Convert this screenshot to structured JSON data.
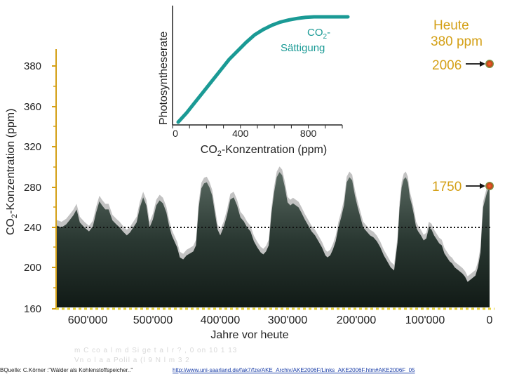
{
  "chart_data": {
    "type": "area",
    "ylabel": "CO2-Konzentration (ppm)",
    "xlabel": "Jahre vor heute",
    "ylim": [
      160,
      395
    ],
    "xlim": [
      650000,
      0
    ],
    "y_ticks": [
      160,
      200,
      240,
      280,
      320,
      360,
      380
    ],
    "x_ticks": [
      "600'000",
      "500'000",
      "400'000",
      "300'000",
      "200'000",
      "100'000",
      "0"
    ],
    "x_tick_values": [
      600000,
      500000,
      400000,
      300000,
      200000,
      100000,
      0
    ],
    "reference_line": 240,
    "series": [
      {
        "x": [
          650000,
          640000,
          633000,
          628000,
          622000,
          617000,
          612000,
          605000,
          598000,
          592000,
          587000,
          582000,
          578000,
          573000,
          568000,
          562000,
          556000,
          551000,
          546000,
          540000,
          535000,
          530000,
          525000,
          520000,
          515000,
          510000,
          505000,
          500000,
          495000,
          490000,
          485000,
          480000,
          476000,
          472000,
          468000,
          464000,
          460000,
          455000,
          450000,
          445000,
          440000,
          436000,
          432000,
          428000,
          424000,
          420000,
          416000,
          412000,
          408000,
          404000,
          400000,
          395000,
          390000,
          385000,
          380000,
          375000,
          370000,
          365000,
          360000,
          355000,
          350000,
          345000,
          340000,
          336000,
          332000,
          328000,
          324000,
          320000,
          316000,
          312000,
          308000,
          304000,
          300000,
          296000,
          292000,
          288000,
          284000,
          280000,
          275000,
          270000,
          265000,
          260000,
          255000,
          250000,
          245000,
          242000,
          238000,
          234000,
          230000,
          226000,
          222000,
          218000,
          214000,
          210000,
          206000,
          202000,
          198000,
          194000,
          190000,
          185000,
          180000,
          175000,
          170000,
          165000,
          160000,
          155000,
          150000,
          145000,
          140000,
          137000,
          134000,
          131000,
          128000,
          125000,
          122000,
          119000,
          116000,
          113000,
          110000,
          106000,
          102000,
          98000,
          94000,
          90000,
          86000,
          82000,
          78000,
          74000,
          70000,
          66000,
          62000,
          58000,
          54000,
          50000,
          46000,
          42000,
          38000,
          34000,
          30000,
          26000,
          22000,
          18000,
          14000,
          12000,
          10000,
          8000,
          6000,
          4000,
          2000,
          0
        ],
        "values": [
          242,
          240,
          243,
          247,
          252,
          258,
          245,
          240,
          236,
          241,
          255,
          266,
          262,
          258,
          258,
          247,
          243,
          240,
          236,
          232,
          235,
          240,
          245,
          260,
          270,
          262,
          240,
          248,
          262,
          267,
          264,
          255,
          242,
          232,
          226,
          220,
          210,
          208,
          212,
          214,
          216,
          222,
          260,
          279,
          284,
          285,
          280,
          272,
          255,
          238,
          232,
          240,
          252,
          268,
          270,
          262,
          250,
          246,
          240,
          236,
          226,
          220,
          215,
          213,
          216,
          222,
          254,
          275,
          290,
          295,
          292,
          280,
          265,
          262,
          264,
          262,
          260,
          255,
          248,
          242,
          236,
          232,
          226,
          220,
          212,
          210,
          212,
          218,
          226,
          240,
          250,
          262,
          285,
          290,
          287,
          272,
          260,
          250,
          240,
          236,
          232,
          230,
          226,
          220,
          212,
          206,
          200,
          197,
          225,
          260,
          280,
          288,
          290,
          285,
          270,
          262,
          252,
          240,
          236,
          232,
          227,
          229,
          240,
          238,
          232,
          228,
          224,
          222,
          214,
          210,
          206,
          204,
          200,
          198,
          196,
          194,
          191,
          186,
          188,
          190,
          192,
          200,
          215,
          240,
          260,
          265,
          270,
          275,
          278,
          280
        ]
      }
    ],
    "annotations": [
      {
        "label": "1750",
        "value": 278
      },
      {
        "label": "2006",
        "value": 380
      },
      {
        "label": "Heute",
        "sub": "380 ppm"
      }
    ],
    "inset": {
      "type": "line",
      "ylabel": "Photosyntheserate",
      "xlabel": "CO2-Konzentration (ppm)",
      "x_ticks": [
        "0",
        "400",
        "800"
      ],
      "x_tick_values": [
        0,
        400,
        800
      ],
      "xlim": [
        0,
        1000
      ],
      "curve_label": "CO2-Sättigung",
      "x": [
        0,
        50,
        100,
        150,
        200,
        250,
        300,
        350,
        400,
        450,
        500,
        550,
        600,
        650,
        700,
        750,
        800,
        850,
        900,
        950,
        1000
      ],
      "values": [
        0,
        0.1,
        0.2,
        0.3,
        0.4,
        0.5,
        0.6,
        0.68,
        0.76,
        0.83,
        0.88,
        0.92,
        0.95,
        0.97,
        0.985,
        0.995,
        1.0,
        1.0,
        1.0,
        1.0,
        1.0
      ]
    }
  },
  "footer": {
    "source": "BQuelle: C.Körner :\"Wälder als Kohlenstoffspeicher..\"",
    "faded_line1": "m C  co  a l     m d    Si ge t a l r   ?  ,       0        on      10 1 13",
    "faded_line2": "Vn  o  l         a a  Polil       a  (l    9  N l  m 3    2",
    "link": "http://www.uni-saarland.de/fak7/fze/AKE_Archiv/AKE2006F/Links_AKE2006F.htm#AKE2006F_05"
  },
  "colors": {
    "area_dark": "#1e2b26",
    "area_light": "#bcbcbc",
    "accent": "#d4a017",
    "curve": "#1a9a95",
    "marker": "#e05a20",
    "link": "#1a3ea8"
  }
}
